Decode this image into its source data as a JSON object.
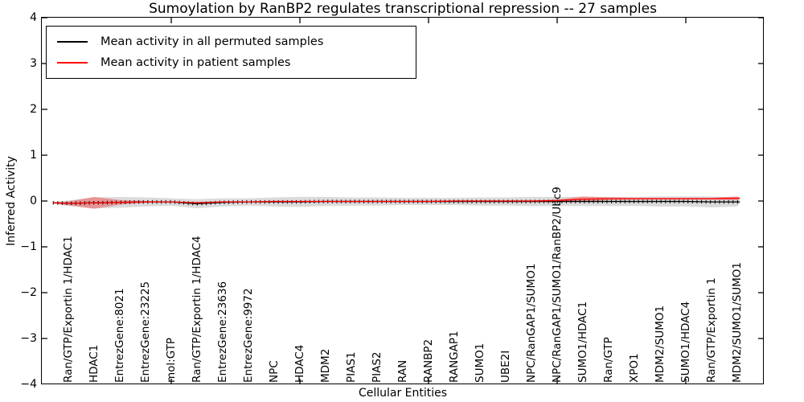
{
  "title": "Sumoylation by RanBP2 regulates transcriptional repression -- 27 samples",
  "axes": {
    "xlabel": "Cellular Entities",
    "ylabel": "Inferred Activity",
    "ylim": [
      -4,
      4
    ],
    "yticks": [
      {
        "value": 4,
        "label": "4"
      },
      {
        "value": 3,
        "label": "3"
      },
      {
        "value": 2,
        "label": "2"
      },
      {
        "value": 1,
        "label": "1"
      },
      {
        "value": 0,
        "label": "0"
      },
      {
        "value": -1,
        "label": "−1"
      },
      {
        "value": -2,
        "label": "−2"
      },
      {
        "value": -3,
        "label": "−3"
      },
      {
        "value": -4,
        "label": "−4"
      }
    ],
    "xtick_category_indices": [
      4,
      9,
      14,
      19,
      24
    ]
  },
  "legend": {
    "items": [
      {
        "label": "Mean activity in all permuted samples",
        "color": "#000000"
      },
      {
        "label": "Mean activity in patient samples",
        "color": "#ff0000"
      }
    ]
  },
  "chart_data": {
    "type": "line",
    "title": "Sumoylation by RanBP2 regulates transcriptional repression -- 27 samples",
    "xlabel": "Cellular Entities",
    "ylabel": "Inferred Activity",
    "ylim": [
      -4,
      4
    ],
    "grid": false,
    "legend_position": "upper left",
    "categories": [
      "Ran/GTP/Exportin 1/HDAC1",
      "HDAC1",
      "EntrezGene:8021",
      "EntrezGene:23225",
      "mol:GTP",
      "Ran/GTP/Exportin 1/HDAC4",
      "EntrezGene:23636",
      "EntrezGene:9972",
      "NPC",
      "HDAC4",
      "MDM2",
      "PIAS1",
      "PIAS2",
      "RAN",
      "RANBP2",
      "RANGAP1",
      "SUMO1",
      "UBE2I",
      "NPC/RanGAP1/SUMO1",
      "NPC/RanGAP1/SUMO1/RanBP2/Ubc9",
      "SUMO1/HDAC1",
      "Ran/GTP",
      "XPO1",
      "MDM2/SUMO1",
      "SUMO1/HDAC4",
      "Ran/GTP/Exportin 1",
      "MDM2/SUMO1/SUMO1"
    ],
    "x": [
      -0.6,
      0,
      1,
      2,
      3,
      4,
      5,
      6,
      7,
      8,
      9,
      10,
      11,
      12,
      13,
      14,
      15,
      16,
      17,
      18,
      19,
      20,
      21,
      22,
      23,
      24,
      25,
      26,
      26.1
    ],
    "series": [
      {
        "name": "Mean activity in all permuted samples",
        "color": "#000000",
        "band_color": "#000000",
        "band_opacity": 0.14,
        "y": [
          -0.04,
          -0.05,
          -0.04,
          -0.03,
          -0.02,
          -0.02,
          -0.06,
          -0.03,
          -0.02,
          -0.02,
          -0.02,
          -0.01,
          -0.01,
          -0.01,
          -0.01,
          -0.01,
          -0.01,
          -0.01,
          -0.01,
          -0.01,
          -0.01,
          -0.01,
          -0.01,
          -0.01,
          -0.01,
          -0.01,
          -0.02,
          -0.02,
          -0.02
        ],
        "band_halfwidth": [
          0.02,
          0.06,
          0.12,
          0.12,
          0.1,
          0.08,
          0.1,
          0.09,
          0.08,
          0.1,
          0.11,
          0.1,
          0.09,
          0.09,
          0.08,
          0.08,
          0.08,
          0.09,
          0.09,
          0.1,
          0.1,
          0.1,
          0.1,
          0.1,
          0.11,
          0.11,
          0.12,
          0.1,
          0.03
        ]
      },
      {
        "name": "Mean activity in patient samples",
        "color": "#ff0000",
        "band_color": "#ff0000",
        "band_opacity": 0.32,
        "y": [
          -0.04,
          -0.05,
          -0.04,
          -0.03,
          -0.02,
          -0.02,
          -0.04,
          -0.02,
          -0.02,
          -0.01,
          -0.01,
          -0.01,
          -0.01,
          -0.01,
          -0.01,
          -0.01,
          0.0,
          0.0,
          0.0,
          0.0,
          0.01,
          0.04,
          0.05,
          0.05,
          0.05,
          0.05,
          0.05,
          0.06,
          0.06
        ],
        "band_halfwidth": [
          0.01,
          0.04,
          0.13,
          0.05,
          0.02,
          0.01,
          0.02,
          0.01,
          0.01,
          0.01,
          0.01,
          0.01,
          0.01,
          0.01,
          0.01,
          0.01,
          0.01,
          0.01,
          0.01,
          0.01,
          0.02,
          0.06,
          0.03,
          0.02,
          0.02,
          0.02,
          0.02,
          0.04,
          0.02
        ]
      }
    ]
  }
}
